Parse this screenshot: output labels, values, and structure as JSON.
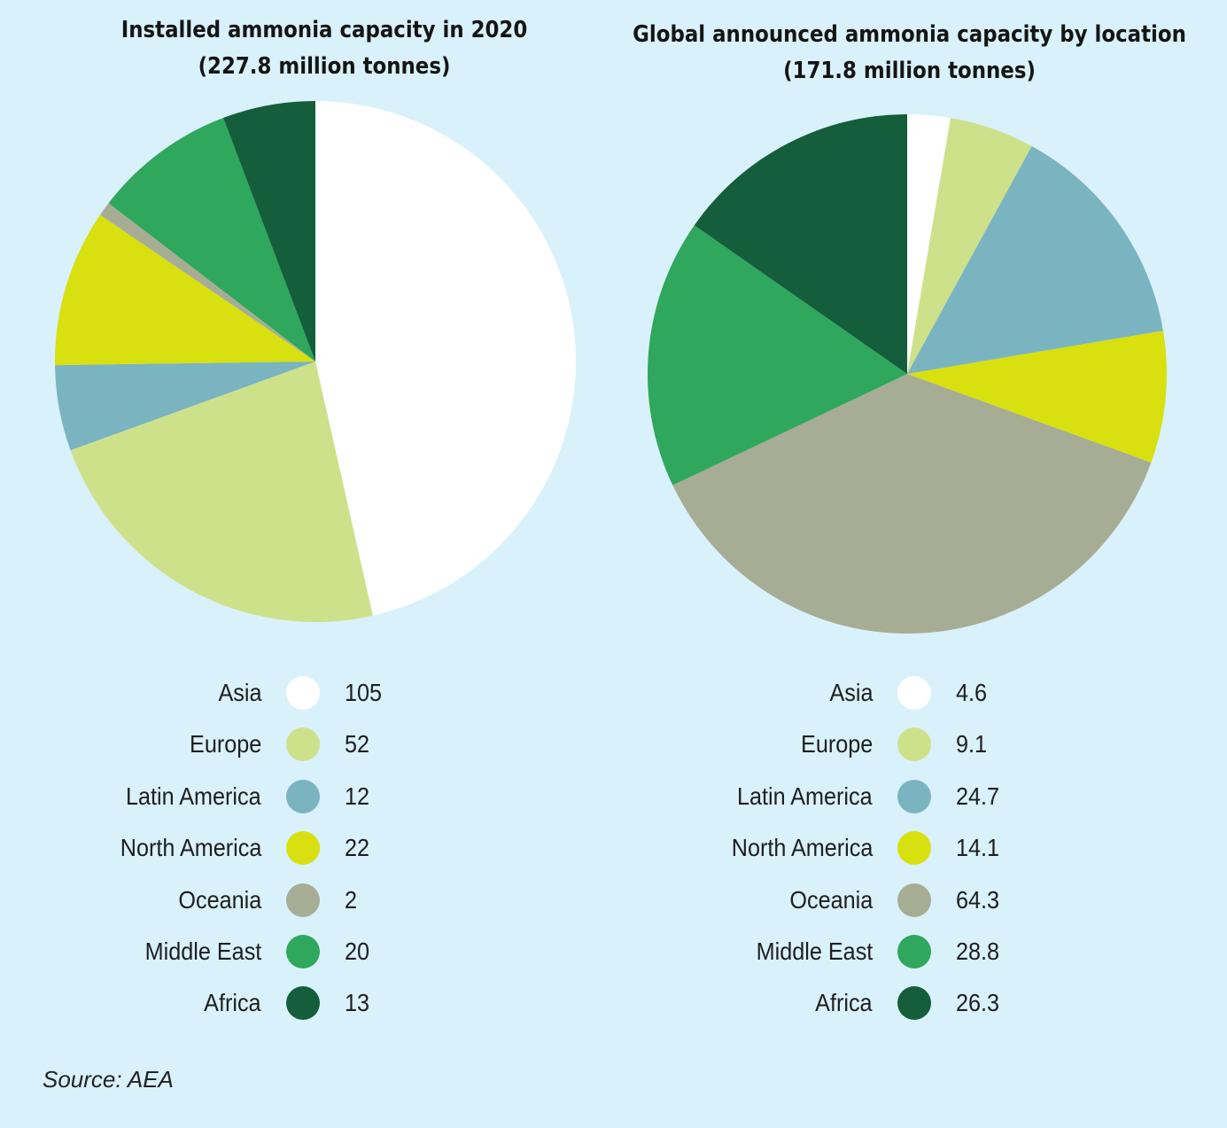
{
  "colors": {
    "Asia": "#ffffff",
    "Europe": "#cde18a",
    "Latin America": "#7ab4c0",
    "North America": "#d8e010",
    "Oceania": "#a7ad95",
    "Middle East": "#2fa75c",
    "Africa": "#145e3b"
  },
  "chart_data": [
    {
      "type": "pie",
      "title": [
        "Installed ammonia capacity in 2020",
        "(227.8 million tonnes)"
      ],
      "categories": [
        "Asia",
        "Europe",
        "Latin America",
        "North America",
        "Oceania",
        "Middle East",
        "Africa"
      ],
      "values": [
        105,
        52,
        12,
        22,
        2,
        20,
        13
      ],
      "value_labels": [
        "105",
        "52",
        "12",
        "22",
        "2",
        "20",
        "13"
      ]
    },
    {
      "type": "pie",
      "title": [
        "Global announced ammonia capacity by location",
        "(171.8 million tonnes)"
      ],
      "categories": [
        "Asia",
        "Europe",
        "Latin America",
        "North America",
        "Oceania",
        "Middle East",
        "Africa"
      ],
      "values": [
        4.6,
        9.1,
        24.7,
        14.1,
        64.3,
        28.8,
        26.3
      ],
      "value_labels": [
        "4.6",
        "9.1",
        "24.7",
        "14.1",
        "64.3",
        "28.8",
        "26.3"
      ]
    }
  ],
  "source": "Source: AEA"
}
